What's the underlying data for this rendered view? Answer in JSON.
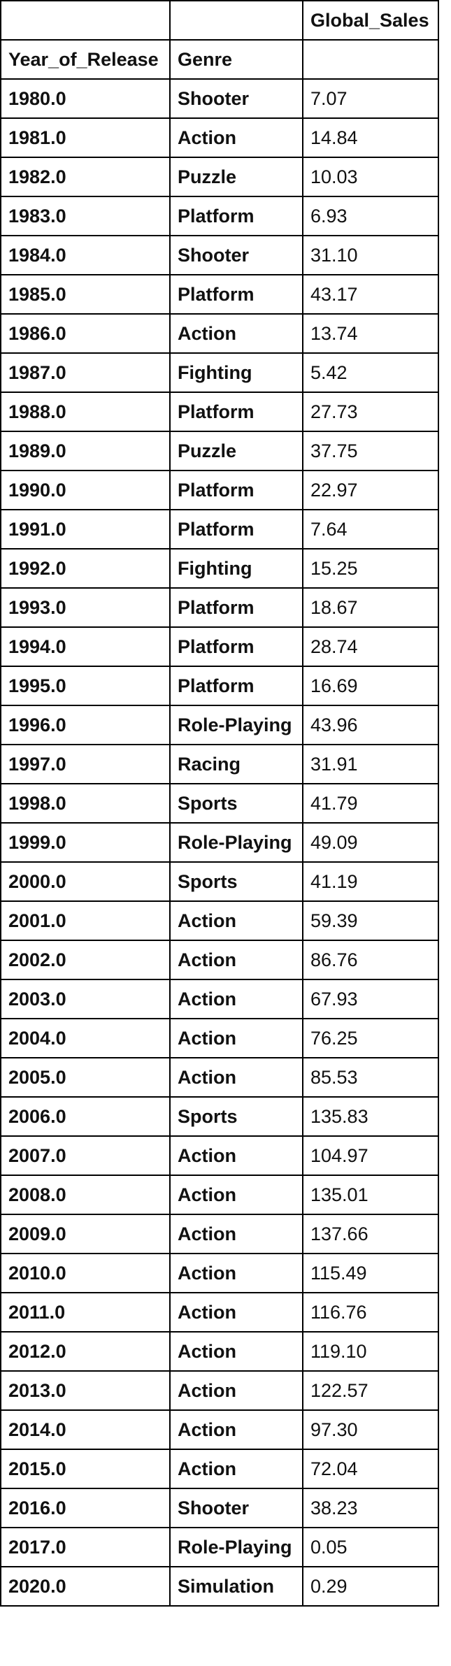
{
  "table": {
    "header_top": [
      "",
      "",
      "Global_Sales"
    ],
    "header_index": [
      "Year_of_Release",
      "Genre",
      ""
    ],
    "rows": [
      {
        "year": "1980.0",
        "genre": "Shooter",
        "sales": "7.07"
      },
      {
        "year": "1981.0",
        "genre": "Action",
        "sales": "14.84"
      },
      {
        "year": "1982.0",
        "genre": "Puzzle",
        "sales": "10.03"
      },
      {
        "year": "1983.0",
        "genre": "Platform",
        "sales": "6.93"
      },
      {
        "year": "1984.0",
        "genre": "Shooter",
        "sales": "31.10"
      },
      {
        "year": "1985.0",
        "genre": "Platform",
        "sales": "43.17"
      },
      {
        "year": "1986.0",
        "genre": "Action",
        "sales": "13.74"
      },
      {
        "year": "1987.0",
        "genre": "Fighting",
        "sales": "5.42"
      },
      {
        "year": "1988.0",
        "genre": "Platform",
        "sales": "27.73"
      },
      {
        "year": "1989.0",
        "genre": "Puzzle",
        "sales": "37.75"
      },
      {
        "year": "1990.0",
        "genre": "Platform",
        "sales": "22.97"
      },
      {
        "year": "1991.0",
        "genre": "Platform",
        "sales": "7.64"
      },
      {
        "year": "1992.0",
        "genre": "Fighting",
        "sales": "15.25"
      },
      {
        "year": "1993.0",
        "genre": "Platform",
        "sales": "18.67"
      },
      {
        "year": "1994.0",
        "genre": "Platform",
        "sales": "28.74"
      },
      {
        "year": "1995.0",
        "genre": "Platform",
        "sales": "16.69"
      },
      {
        "year": "1996.0",
        "genre": "Role-Playing",
        "sales": "43.96"
      },
      {
        "year": "1997.0",
        "genre": "Racing",
        "sales": "31.91"
      },
      {
        "year": "1998.0",
        "genre": "Sports",
        "sales": "41.79"
      },
      {
        "year": "1999.0",
        "genre": "Role-Playing",
        "sales": "49.09"
      },
      {
        "year": "2000.0",
        "genre": "Sports",
        "sales": "41.19"
      },
      {
        "year": "2001.0",
        "genre": "Action",
        "sales": "59.39"
      },
      {
        "year": "2002.0",
        "genre": "Action",
        "sales": "86.76"
      },
      {
        "year": "2003.0",
        "genre": "Action",
        "sales": "67.93"
      },
      {
        "year": "2004.0",
        "genre": "Action",
        "sales": "76.25"
      },
      {
        "year": "2005.0",
        "genre": "Action",
        "sales": "85.53"
      },
      {
        "year": "2006.0",
        "genre": "Sports",
        "sales": "135.83"
      },
      {
        "year": "2007.0",
        "genre": "Action",
        "sales": "104.97"
      },
      {
        "year": "2008.0",
        "genre": "Action",
        "sales": "135.01"
      },
      {
        "year": "2009.0",
        "genre": "Action",
        "sales": "137.66"
      },
      {
        "year": "2010.0",
        "genre": "Action",
        "sales": "115.49"
      },
      {
        "year": "2011.0",
        "genre": "Action",
        "sales": "116.76"
      },
      {
        "year": "2012.0",
        "genre": "Action",
        "sales": "119.10"
      },
      {
        "year": "2013.0",
        "genre": "Action",
        "sales": "122.57"
      },
      {
        "year": "2014.0",
        "genre": "Action",
        "sales": "97.30"
      },
      {
        "year": "2015.0",
        "genre": "Action",
        "sales": "72.04"
      },
      {
        "year": "2016.0",
        "genre": "Shooter",
        "sales": "38.23"
      },
      {
        "year": "2017.0",
        "genre": "Role-Playing",
        "sales": "0.05"
      },
      {
        "year": "2020.0",
        "genre": "Simulation",
        "sales": "0.29"
      }
    ]
  }
}
